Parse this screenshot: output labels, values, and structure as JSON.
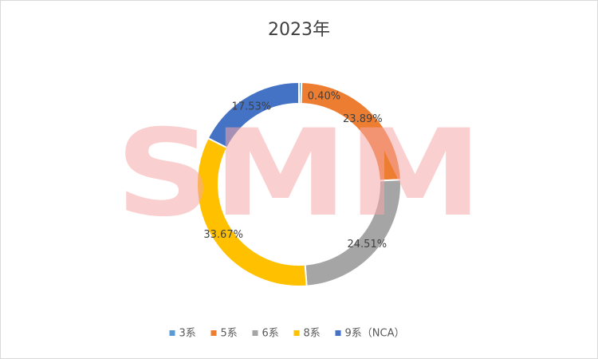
{
  "chart_data": {
    "type": "donut",
    "title": "2023年",
    "watermark": "SMM",
    "categories": [
      "3系",
      "5系",
      "6系",
      "8系",
      "9系（NCA）"
    ],
    "values": [
      0.4,
      23.89,
      24.51,
      33.67,
      17.53
    ],
    "value_labels": [
      "0.40%",
      "23.89%",
      "24.51%",
      "33.67%",
      "17.53%"
    ],
    "colors": [
      "#5b9bd5",
      "#ed7d31",
      "#a5a5a5",
      "#ffc000",
      "#4472c4"
    ],
    "legend": "bottom"
  }
}
